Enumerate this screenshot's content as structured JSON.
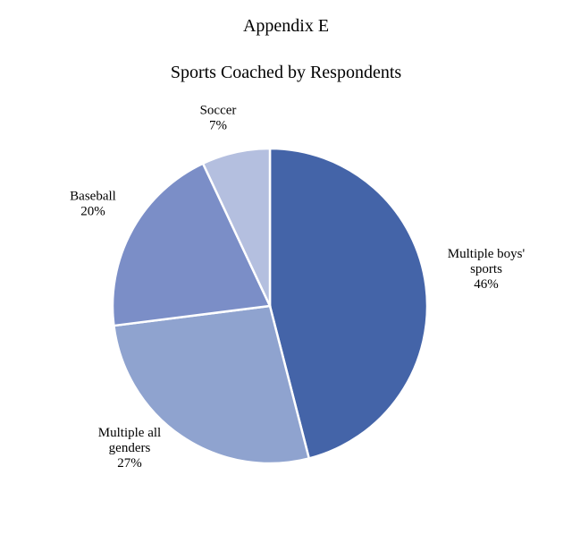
{
  "page": {
    "appendix": "Appendix E"
  },
  "chart_data": {
    "type": "pie",
    "title": "Sports Coached by Respondents",
    "slices": [
      {
        "label": [
          "Multiple boys'",
          "sports"
        ],
        "percent_label": "46%",
        "value": 46,
        "color": "#4464a8"
      },
      {
        "label": [
          "Multiple all",
          "genders"
        ],
        "percent_label": "27%",
        "value": 27,
        "color": "#8fa3cf"
      },
      {
        "label": [
          "Baseball"
        ],
        "percent_label": "20%",
        "value": 20,
        "color": "#7b8ec7"
      },
      {
        "label": [
          "Soccer"
        ],
        "percent_label": "7%",
        "value": 7,
        "color": "#b4bfdf"
      }
    ],
    "start": "12 o'clock",
    "direction": "clockwise",
    "legend": "none"
  }
}
